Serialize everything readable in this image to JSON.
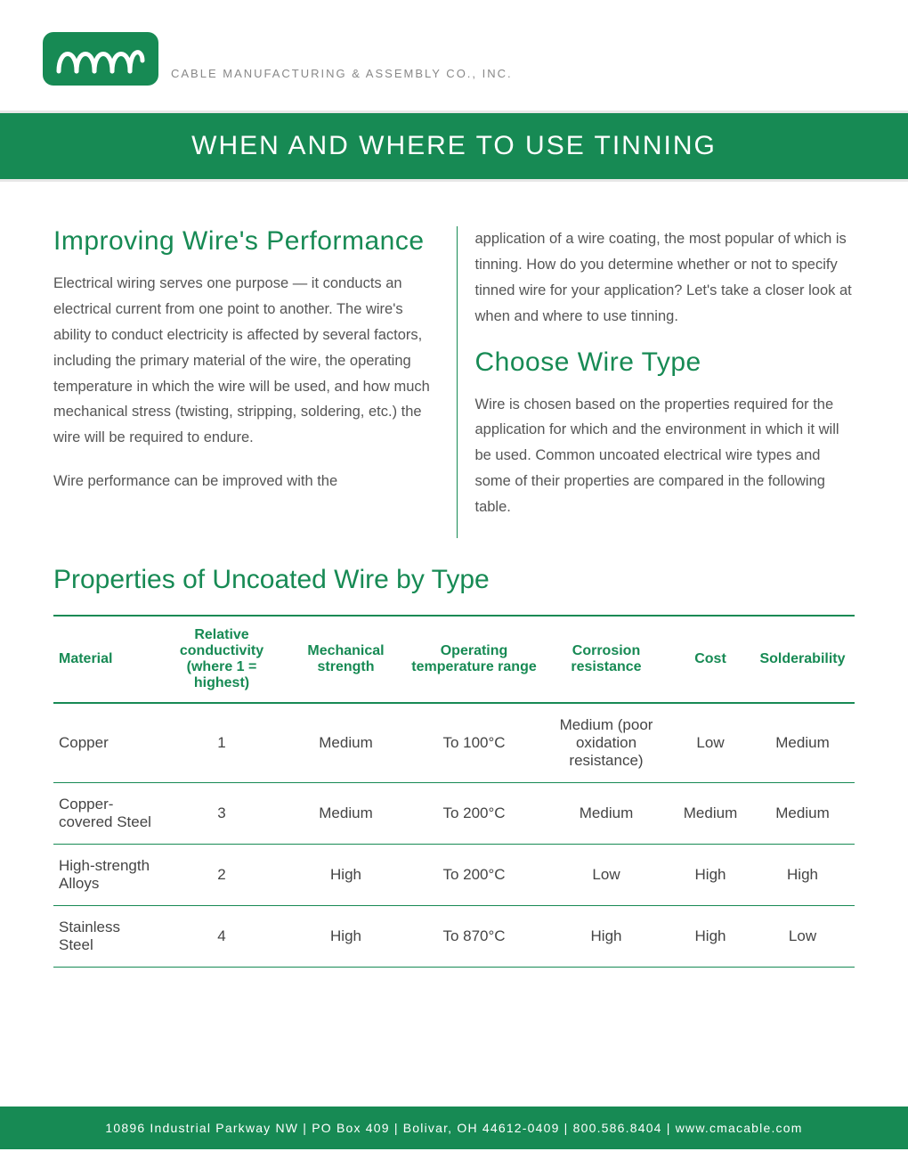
{
  "colors": {
    "brand_green": "#178a54",
    "text_gray": "#555555",
    "light_gray": "#e7e7e7",
    "company_gray": "#888888",
    "white": "#ffffff"
  },
  "header": {
    "company_name": "CABLE MANUFACTURING & ASSEMBLY CO., INC."
  },
  "banner": {
    "title": "WHEN AND WHERE TO USE TINNING"
  },
  "sections": {
    "left": {
      "heading": "Improving Wire's Performance",
      "para1": "Electrical wiring serves one purpose — it conducts an electrical current from one point to another. The wire's ability to conduct electricity is affected by several factors, including the primary material of the wire, the operating temperature in which the wire will be used, and how much mechanical stress (twisting, stripping, soldering, etc.) the wire will be required to endure.",
      "para2": "Wire performance can be improved with the"
    },
    "right": {
      "para1": "application of a wire coating, the most popular of which is tinning. How do you determine whether or not to specify tinned wire for your application? Let's take a closer look at when and where to use tinning.",
      "heading": "Choose Wire Type",
      "para2": "Wire is chosen based on the properties required for the application for which and the environment in which it will be used. Common uncoated electrical wire types and some of their properties are compared in the following table."
    }
  },
  "table": {
    "title": "Properties of Uncoated Wire by Type",
    "columns": [
      "Material",
      "Relative conductivity (where 1 = highest)",
      "Mechanical strength",
      "Operating temperature range",
      "Corrosion resistance",
      "Cost",
      "Solderability"
    ],
    "column_widths": [
      "13%",
      "16%",
      "15%",
      "17%",
      "16%",
      "10%",
      "13%"
    ],
    "rows": [
      [
        "Copper",
        "1",
        "Medium",
        "To 100°C",
        "Medium (poor oxidation resistance)",
        "Low",
        "Medium"
      ],
      [
        "Copper-covered Steel",
        "3",
        "Medium",
        "To 200°C",
        "Medium",
        "Medium",
        "Medium"
      ],
      [
        "High-strength Alloys",
        "2",
        "High",
        "To 200°C",
        "Low",
        "High",
        "High"
      ],
      [
        "Stainless Steel",
        "4",
        "High",
        "To 870°C",
        "High",
        "High",
        "Low"
      ]
    ]
  },
  "footer": {
    "address": "10896 Industrial Parkway NW",
    "po": "PO Box 409",
    "city": "Bolivar, OH 44612-0409",
    "phone": "800.586.8404",
    "url": "www.cmacable.com",
    "sep": "   |   "
  }
}
